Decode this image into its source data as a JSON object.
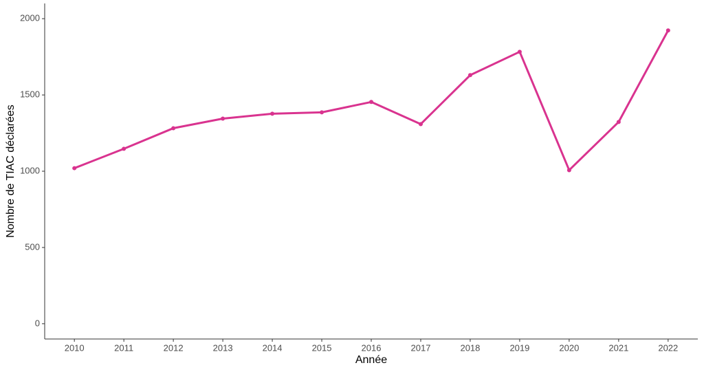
{
  "chart_data": {
    "type": "line",
    "x_label": "Année",
    "y_label": "Nombre de TIAC déclarées",
    "x": [
      2010,
      2011,
      2012,
      2013,
      2014,
      2015,
      2016,
      2017,
      2018,
      2019,
      2020,
      2021,
      2022
    ],
    "series": [
      {
        "name": "TIAC",
        "color": "#d9338f",
        "values": [
          1020,
          1147,
          1282,
          1345,
          1377,
          1386,
          1454,
          1309,
          1630,
          1783,
          1007,
          1323,
          1923
        ]
      }
    ],
    "xlim": [
      2009.4,
      2022.6
    ],
    "xticks": [
      2010,
      2011,
      2012,
      2013,
      2014,
      2015,
      2016,
      2017,
      2018,
      2019,
      2020,
      2021,
      2022
    ],
    "ylim": [
      -100,
      2100
    ],
    "yticks": [
      0,
      500,
      1000,
      1500,
      2000
    ],
    "grid": false
  }
}
